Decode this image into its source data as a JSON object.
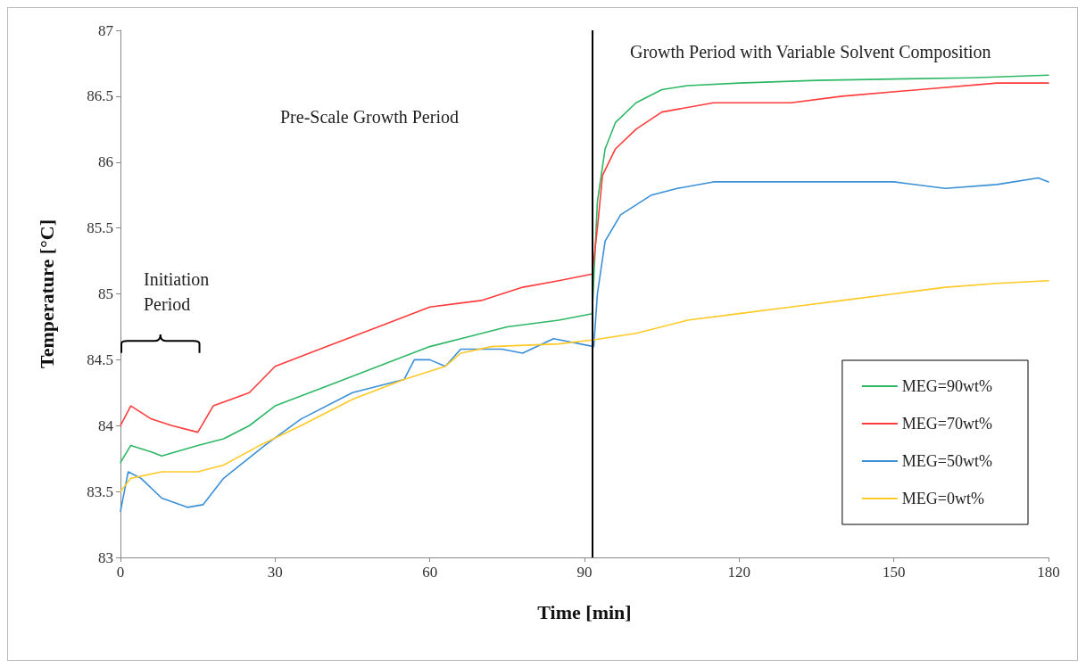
{
  "chart_data": {
    "type": "line",
    "xlabel": "Time [min]",
    "ylabel": "Temperature [°C]",
    "xlim": [
      0,
      180
    ],
    "xticks": [
      0,
      30,
      60,
      90,
      120,
      150,
      180
    ],
    "ylim": [
      83,
      87
    ],
    "yticks": [
      83,
      83.5,
      84,
      84.5,
      85,
      85.5,
      86,
      86.5,
      87
    ],
    "grid": false,
    "legend": "right",
    "marker": "none",
    "line_style": "solid",
    "ref_lines": [
      {
        "axis": "x",
        "value": 91.5,
        "color": "#000000"
      }
    ],
    "annotations": [
      "Initiation Period",
      "Pre-Scale Growth Period",
      "Growth Period with Variable Solvent Composition"
    ],
    "series": [
      {
        "name": "MEG=90wt%",
        "color": "#2eb866",
        "x": [
          0,
          2,
          6,
          8,
          15,
          20,
          25,
          30,
          40,
          50,
          60,
          65,
          75,
          85,
          91.5,
          92.5,
          94,
          96,
          100,
          105,
          110,
          120,
          135,
          150,
          165,
          180
        ],
        "values": [
          83.72,
          83.85,
          83.8,
          83.77,
          83.85,
          83.9,
          84.0,
          84.15,
          84.3,
          84.45,
          84.6,
          84.65,
          84.75,
          84.8,
          84.85,
          85.7,
          86.1,
          86.3,
          86.45,
          86.55,
          86.58,
          86.6,
          86.62,
          86.63,
          86.64,
          86.66
        ]
      },
      {
        "name": "MEG=70wt%",
        "color": "#ff3b3b",
        "x": [
          0,
          2,
          6,
          10,
          15,
          18,
          25,
          30,
          40,
          50,
          60,
          70,
          78,
          85,
          91.5,
          92.5,
          93.5,
          96,
          100,
          105,
          115,
          130,
          140,
          155,
          170,
          180
        ],
        "values": [
          84.0,
          84.15,
          84.05,
          84.0,
          83.95,
          84.15,
          84.25,
          84.45,
          84.6,
          84.75,
          84.9,
          84.95,
          85.05,
          85.1,
          85.15,
          85.5,
          85.9,
          86.1,
          86.25,
          86.38,
          86.45,
          86.45,
          86.5,
          86.55,
          86.6,
          86.6
        ]
      },
      {
        "name": "MEG=50wt%",
        "color": "#3a8fd6",
        "x": [
          0,
          1.5,
          4,
          8,
          13,
          16,
          20,
          28,
          35,
          45,
          55,
          57,
          60,
          63,
          66,
          74,
          78,
          84,
          91.8,
          92.5,
          94,
          97,
          103,
          108,
          115,
          130,
          150,
          160,
          170,
          178,
          180
        ],
        "values": [
          83.35,
          83.65,
          83.6,
          83.45,
          83.38,
          83.4,
          83.6,
          83.85,
          84.05,
          84.25,
          84.35,
          84.5,
          84.5,
          84.45,
          84.58,
          84.58,
          84.55,
          84.66,
          84.6,
          85.0,
          85.4,
          85.6,
          85.75,
          85.8,
          85.85,
          85.85,
          85.85,
          85.8,
          85.83,
          85.88,
          85.85
        ]
      },
      {
        "name": "MEG=0wt%",
        "color": "#ffc926",
        "x": [
          0,
          2,
          8,
          15,
          20,
          27,
          35,
          45,
          55,
          63,
          66,
          72,
          85,
          91.5,
          100,
          110,
          120,
          130,
          140,
          150,
          160,
          170,
          180
        ],
        "values": [
          83.5,
          83.6,
          83.65,
          83.65,
          83.7,
          83.85,
          84.0,
          84.2,
          84.35,
          84.45,
          84.55,
          84.6,
          84.62,
          84.65,
          84.7,
          84.8,
          84.85,
          84.9,
          84.95,
          85.0,
          85.05,
          85.08,
          85.1
        ]
      }
    ]
  }
}
